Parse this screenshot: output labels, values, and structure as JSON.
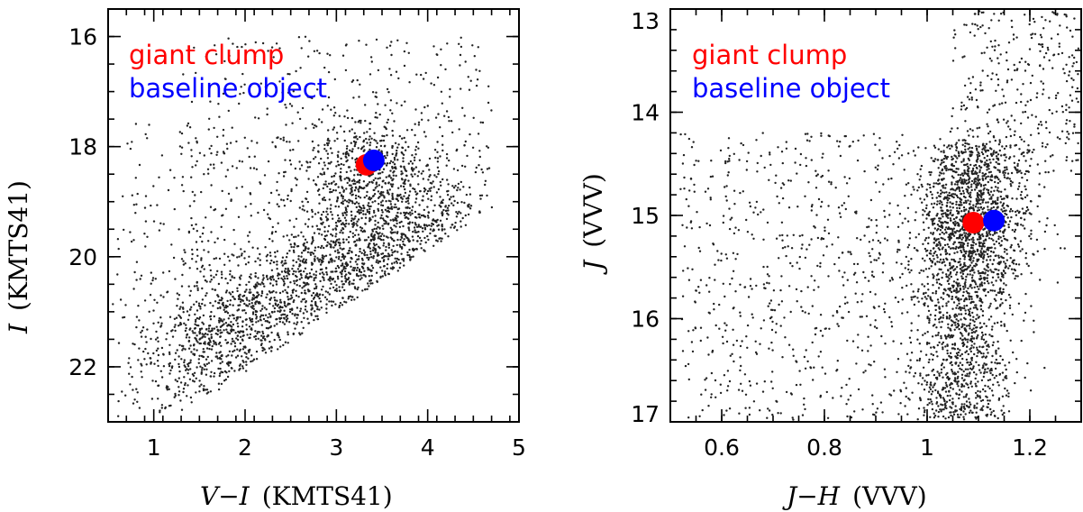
{
  "colors": {
    "giant_clump": "#ff0000",
    "baseline_object": "#0000ff",
    "stars": "#222222"
  },
  "chart_data": [
    {
      "type": "scatter",
      "xlabel_var": "V−I",
      "xlabel_unit": "(KMTS41)",
      "ylabel_var": "I",
      "ylabel_unit": "(KMTS41)",
      "xlim": [
        0.5,
        5.0
      ],
      "ylim": [
        23.0,
        15.5
      ],
      "y_inverted": true,
      "xticks": [
        1,
        2,
        3,
        4,
        5
      ],
      "yticks": [
        16,
        18,
        20,
        22
      ],
      "legend": [
        "giant clump",
        "baseline object"
      ],
      "legend_position": "top-left",
      "series": [
        {
          "name": "giant clump",
          "x": [
            3.33
          ],
          "y": [
            18.33
          ]
        },
        {
          "name": "baseline object",
          "x": [
            3.41
          ],
          "y": [
            18.25
          ]
        }
      ],
      "field_stars": {
        "note": "thousands of field stars (approximate distribution)",
        "count": 3200,
        "region": "band from (V−I≈0.7, I≈22.8) to (V−I≈4.7, I≈18.8); dense along I≈19.5–21.5",
        "clump_center": [
          3.3,
          18.3
        ]
      }
    },
    {
      "type": "scatter",
      "xlabel_var": "J−H",
      "xlabel_unit": "(VVV)",
      "ylabel_var": "J",
      "ylabel_unit": "(VVV)",
      "xlim": [
        0.5,
        1.3
      ],
      "ylim": [
        17.0,
        13.0
      ],
      "y_inverted": true,
      "xticks": [
        0.6,
        0.8,
        1,
        1.2
      ],
      "yticks": [
        13,
        14,
        15,
        16,
        17
      ],
      "legend": [
        "giant clump",
        "baseline object"
      ],
      "legend_position": "top-left",
      "series": [
        {
          "name": "giant clump",
          "x": [
            1.09
          ],
          "y": [
            15.07
          ]
        },
        {
          "name": "baseline object",
          "x": [
            1.13
          ],
          "y": [
            15.05
          ]
        }
      ],
      "field_stars": {
        "note": "thousands of field stars (approximate distribution)",
        "count": 2800,
        "region": "dense giant branch near J−H≈1.05–1.15; sparse blue sequence J−H≈0.55–0.95",
        "clump_center": [
          1.09,
          15.1
        ]
      }
    }
  ]
}
